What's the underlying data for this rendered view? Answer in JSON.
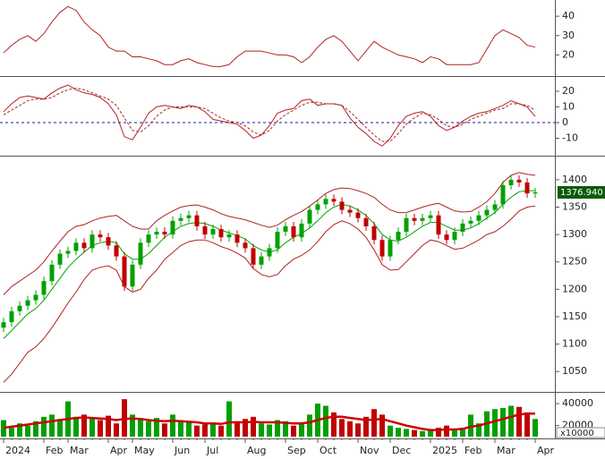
{
  "chart_data": [
    {
      "type": "line",
      "ylim": [
        10,
        47
      ],
      "yticks": [
        20,
        30,
        40
      ],
      "series": [
        {
          "color": "#b22222",
          "values": [
            21,
            25,
            28,
            30,
            27,
            31,
            37,
            42,
            45,
            43,
            37,
            33,
            30,
            24,
            22,
            22,
            19,
            19,
            18,
            17,
            15,
            15,
            17,
            18,
            16,
            15,
            14,
            14,
            15,
            19,
            22,
            22,
            22,
            21,
            20,
            20,
            19,
            16,
            19,
            24,
            28,
            30,
            27,
            22,
            17,
            22,
            27,
            24,
            22,
            20,
            19,
            18,
            16,
            19,
            18,
            15,
            15,
            15,
            15,
            16,
            23,
            30,
            33,
            31,
            29,
            25,
            24
          ]
        }
      ]
    },
    {
      "type": "line",
      "ylim": [
        -20,
        28
      ],
      "yticks": [
        -10,
        0,
        10,
        20
      ],
      "hline": 0,
      "hline_color": "#1a1aa0",
      "series": [
        {
          "color": "#b22222",
          "dashed": false,
          "values": [
            7,
            12,
            16,
            17,
            16,
            15,
            19,
            22,
            24,
            21,
            19,
            18,
            16,
            12,
            5,
            -9,
            -11,
            -3,
            6,
            10,
            11,
            10,
            9,
            11,
            10,
            7,
            2,
            1,
            0,
            -1,
            -5,
            -10,
            -8,
            -2,
            6,
            8,
            9,
            14,
            15,
            11,
            12,
            12,
            11,
            3,
            -3,
            -7,
            -12,
            -15,
            -10,
            -2,
            4,
            6,
            7,
            4,
            -2,
            -5,
            -3,
            1,
            4,
            6,
            7,
            9,
            11,
            14,
            12,
            10,
            4
          ]
        },
        {
          "color": "#b22222",
          "dashed": true,
          "values": [
            5,
            8,
            11,
            14,
            15,
            15,
            16,
            19,
            21,
            22,
            21,
            19,
            17,
            15,
            11,
            3,
            -5,
            -6,
            -2,
            4,
            8,
            10,
            10,
            10,
            10,
            9,
            6,
            3,
            1,
            0,
            -2,
            -6,
            -8,
            -5,
            1,
            5,
            8,
            11,
            13,
            13,
            12,
            12,
            11,
            7,
            2,
            -3,
            -8,
            -12,
            -12,
            -7,
            -1,
            3,
            6,
            5,
            2,
            -2,
            -3,
            -1,
            2,
            4,
            6,
            8,
            9,
            12,
            12,
            11,
            8
          ]
        }
      ]
    },
    {
      "type": "candlestick",
      "ylim": [
        1016,
        1439
      ],
      "yticks": [
        1050,
        1100,
        1150,
        1200,
        1250,
        1300,
        1350,
        1400
      ],
      "up_color": "#00a000",
      "down_color": "#c00000",
      "last_close_label": "1376.940",
      "label_color": "#0b5a0b",
      "open": [
        1130,
        1140,
        1160,
        1170,
        1180,
        1190,
        1215,
        1245,
        1265,
        1270,
        1285,
        1275,
        1300,
        1295,
        1280,
        1260,
        1205,
        1245,
        1285,
        1300,
        1305,
        1300,
        1325,
        1330,
        1335,
        1315,
        1300,
        1310,
        1295,
        1300,
        1285,
        1275,
        1245,
        1260,
        1275,
        1305,
        1315,
        1295,
        1320,
        1345,
        1355,
        1365,
        1360,
        1345,
        1340,
        1330,
        1315,
        1290,
        1260,
        1290,
        1305,
        1330,
        1325,
        1330,
        1335,
        1300,
        1290,
        1305,
        1320,
        1325,
        1335,
        1345,
        1355,
        1390,
        1400,
        1395,
        1375
      ],
      "high": [
        1148,
        1168,
        1178,
        1188,
        1198,
        1223,
        1253,
        1273,
        1278,
        1293,
        1293,
        1308,
        1308,
        1303,
        1288,
        1268,
        1253,
        1293,
        1308,
        1313,
        1313,
        1333,
        1338,
        1343,
        1343,
        1323,
        1318,
        1318,
        1308,
        1308,
        1293,
        1283,
        1268,
        1283,
        1313,
        1323,
        1323,
        1328,
        1353,
        1363,
        1373,
        1373,
        1368,
        1353,
        1348,
        1338,
        1323,
        1298,
        1298,
        1313,
        1338,
        1338,
        1338,
        1343,
        1343,
        1308,
        1313,
        1328,
        1333,
        1343,
        1353,
        1363,
        1398,
        1408,
        1408,
        1403,
        1385
      ],
      "low": [
        1122,
        1132,
        1152,
        1162,
        1172,
        1182,
        1207,
        1237,
        1257,
        1262,
        1267,
        1267,
        1287,
        1272,
        1252,
        1197,
        1197,
        1237,
        1277,
        1292,
        1292,
        1292,
        1317,
        1322,
        1307,
        1292,
        1292,
        1287,
        1287,
        1277,
        1267,
        1237,
        1237,
        1252,
        1267,
        1297,
        1287,
        1287,
        1312,
        1337,
        1347,
        1352,
        1337,
        1332,
        1322,
        1307,
        1282,
        1252,
        1252,
        1282,
        1297,
        1317,
        1317,
        1322,
        1292,
        1282,
        1282,
        1297,
        1312,
        1317,
        1327,
        1337,
        1347,
        1382,
        1387,
        1367,
        1367
      ],
      "close": [
        1140,
        1160,
        1170,
        1180,
        1190,
        1215,
        1245,
        1265,
        1270,
        1285,
        1275,
        1300,
        1295,
        1280,
        1260,
        1205,
        1245,
        1285,
        1300,
        1305,
        1300,
        1325,
        1330,
        1335,
        1315,
        1300,
        1310,
        1295,
        1300,
        1285,
        1275,
        1245,
        1260,
        1275,
        1305,
        1315,
        1295,
        1320,
        1345,
        1355,
        1365,
        1360,
        1345,
        1340,
        1330,
        1315,
        1290,
        1260,
        1290,
        1305,
        1330,
        1325,
        1330,
        1335,
        1300,
        1290,
        1305,
        1320,
        1325,
        1335,
        1345,
        1355,
        1390,
        1400,
        1395,
        1375,
        1376.94
      ],
      "series": [
        {
          "color": "#b22222",
          "values": [
            1190,
            1205,
            1215,
            1225,
            1235,
            1250,
            1270,
            1288,
            1305,
            1315,
            1318,
            1325,
            1330,
            1333,
            1335,
            1325,
            1315,
            1310,
            1310,
            1325,
            1335,
            1343,
            1350,
            1353,
            1354,
            1350,
            1345,
            1338,
            1333,
            1330,
            1327,
            1322,
            1317,
            1313,
            1317,
            1327,
            1335,
            1342,
            1352,
            1363,
            1375,
            1382,
            1385,
            1384,
            1380,
            1375,
            1368,
            1355,
            1345,
            1340,
            1340,
            1345,
            1350,
            1354,
            1357,
            1350,
            1343,
            1341,
            1342,
            1350,
            1360,
            1375,
            1395,
            1408,
            1413,
            1410,
            1408
          ]
        },
        {
          "color": "#00a000",
          "values": [
            1110,
            1125,
            1140,
            1155,
            1165,
            1180,
            1200,
            1220,
            1240,
            1255,
            1268,
            1280,
            1285,
            1288,
            1285,
            1265,
            1255,
            1255,
            1265,
            1280,
            1295,
            1305,
            1315,
            1320,
            1322,
            1320,
            1315,
            1308,
            1303,
            1298,
            1292,
            1280,
            1272,
            1268,
            1272,
            1285,
            1295,
            1302,
            1312,
            1325,
            1340,
            1350,
            1355,
            1352,
            1345,
            1335,
            1320,
            1300,
            1290,
            1288,
            1295,
            1305,
            1315,
            1322,
            1322,
            1315,
            1308,
            1308,
            1312,
            1320,
            1330,
            1340,
            1355,
            1368,
            1378,
            1380,
            1380
          ]
        },
        {
          "color": "#b22222",
          "values": [
            1030,
            1045,
            1065,
            1085,
            1095,
            1110,
            1130,
            1152,
            1175,
            1195,
            1218,
            1235,
            1240,
            1243,
            1235,
            1205,
            1195,
            1200,
            1220,
            1235,
            1255,
            1267,
            1280,
            1287,
            1290,
            1290,
            1285,
            1278,
            1273,
            1266,
            1257,
            1238,
            1227,
            1223,
            1227,
            1243,
            1255,
            1262,
            1272,
            1287,
            1305,
            1318,
            1325,
            1320,
            1310,
            1295,
            1272,
            1245,
            1235,
            1236,
            1250,
            1265,
            1280,
            1290,
            1287,
            1280,
            1273,
            1275,
            1282,
            1290,
            1300,
            1305,
            1315,
            1328,
            1343,
            1350,
            1352
          ]
        }
      ]
    },
    {
      "type": "bar",
      "ylim": [
        10000,
        49000
      ],
      "yticks": [
        20000,
        40000
      ],
      "unit_label": "x10000",
      "up_color": "#00a000",
      "down_color": "#c00000",
      "values": [
        25000,
        18000,
        22000,
        20000,
        24000,
        28000,
        30000,
        26000,
        42000,
        28000,
        30000,
        27000,
        25000,
        29000,
        22000,
        44000,
        30000,
        26000,
        24000,
        27000,
        22000,
        30000,
        25000,
        24000,
        20000,
        21000,
        23000,
        20000,
        42000,
        24000,
        26000,
        28000,
        22000,
        21000,
        25000,
        24000,
        20000,
        22000,
        30000,
        40000,
        38000,
        32000,
        26000,
        24000,
        22000,
        28000,
        35000,
        30000,
        20000,
        18000,
        17000,
        16000,
        15000,
        16000,
        18000,
        20000,
        17000,
        18000,
        30000,
        22000,
        33000,
        35000,
        36000,
        38000,
        37000,
        32000,
        26000
      ],
      "ma": {
        "color": "#cc0000",
        "values": [
          18000,
          19000,
          20000,
          21000,
          22000,
          23000,
          24000,
          25000,
          26000,
          27000,
          27500,
          27000,
          26500,
          26000,
          25000,
          26000,
          26500,
          26000,
          25000,
          24500,
          24000,
          24500,
          24000,
          23500,
          23000,
          22000,
          22000,
          21500,
          23000,
          23000,
          23000,
          23500,
          23000,
          23000,
          23000,
          22500,
          22000,
          22000,
          23000,
          25000,
          27000,
          28000,
          28000,
          27000,
          26000,
          25000,
          25500,
          26000,
          24000,
          22000,
          20000,
          18500,
          17000,
          16000,
          16000,
          16500,
          16500,
          17000,
          19000,
          20000,
          22000,
          24000,
          26000,
          28000,
          30000,
          31000,
          31000
        ]
      },
      "categories": [
        "2024",
        null,
        null,
        null,
        null,
        "Feb",
        null,
        null,
        "Mar",
        null,
        null,
        null,
        null,
        "Apr",
        null,
        null,
        "May",
        null,
        null,
        null,
        null,
        "Jun",
        null,
        null,
        null,
        "Jul",
        null,
        null,
        null,
        null,
        "Aug",
        null,
        null,
        null,
        null,
        "Sep",
        null,
        null,
        null,
        "Oct",
        null,
        null,
        null,
        null,
        "Nov",
        null,
        null,
        null,
        "Dec",
        null,
        null,
        null,
        null,
        "2025",
        null,
        null,
        null,
        "Feb",
        null,
        null,
        null,
        "Mar",
        null,
        null,
        null,
        null,
        "Apr"
      ]
    }
  ]
}
